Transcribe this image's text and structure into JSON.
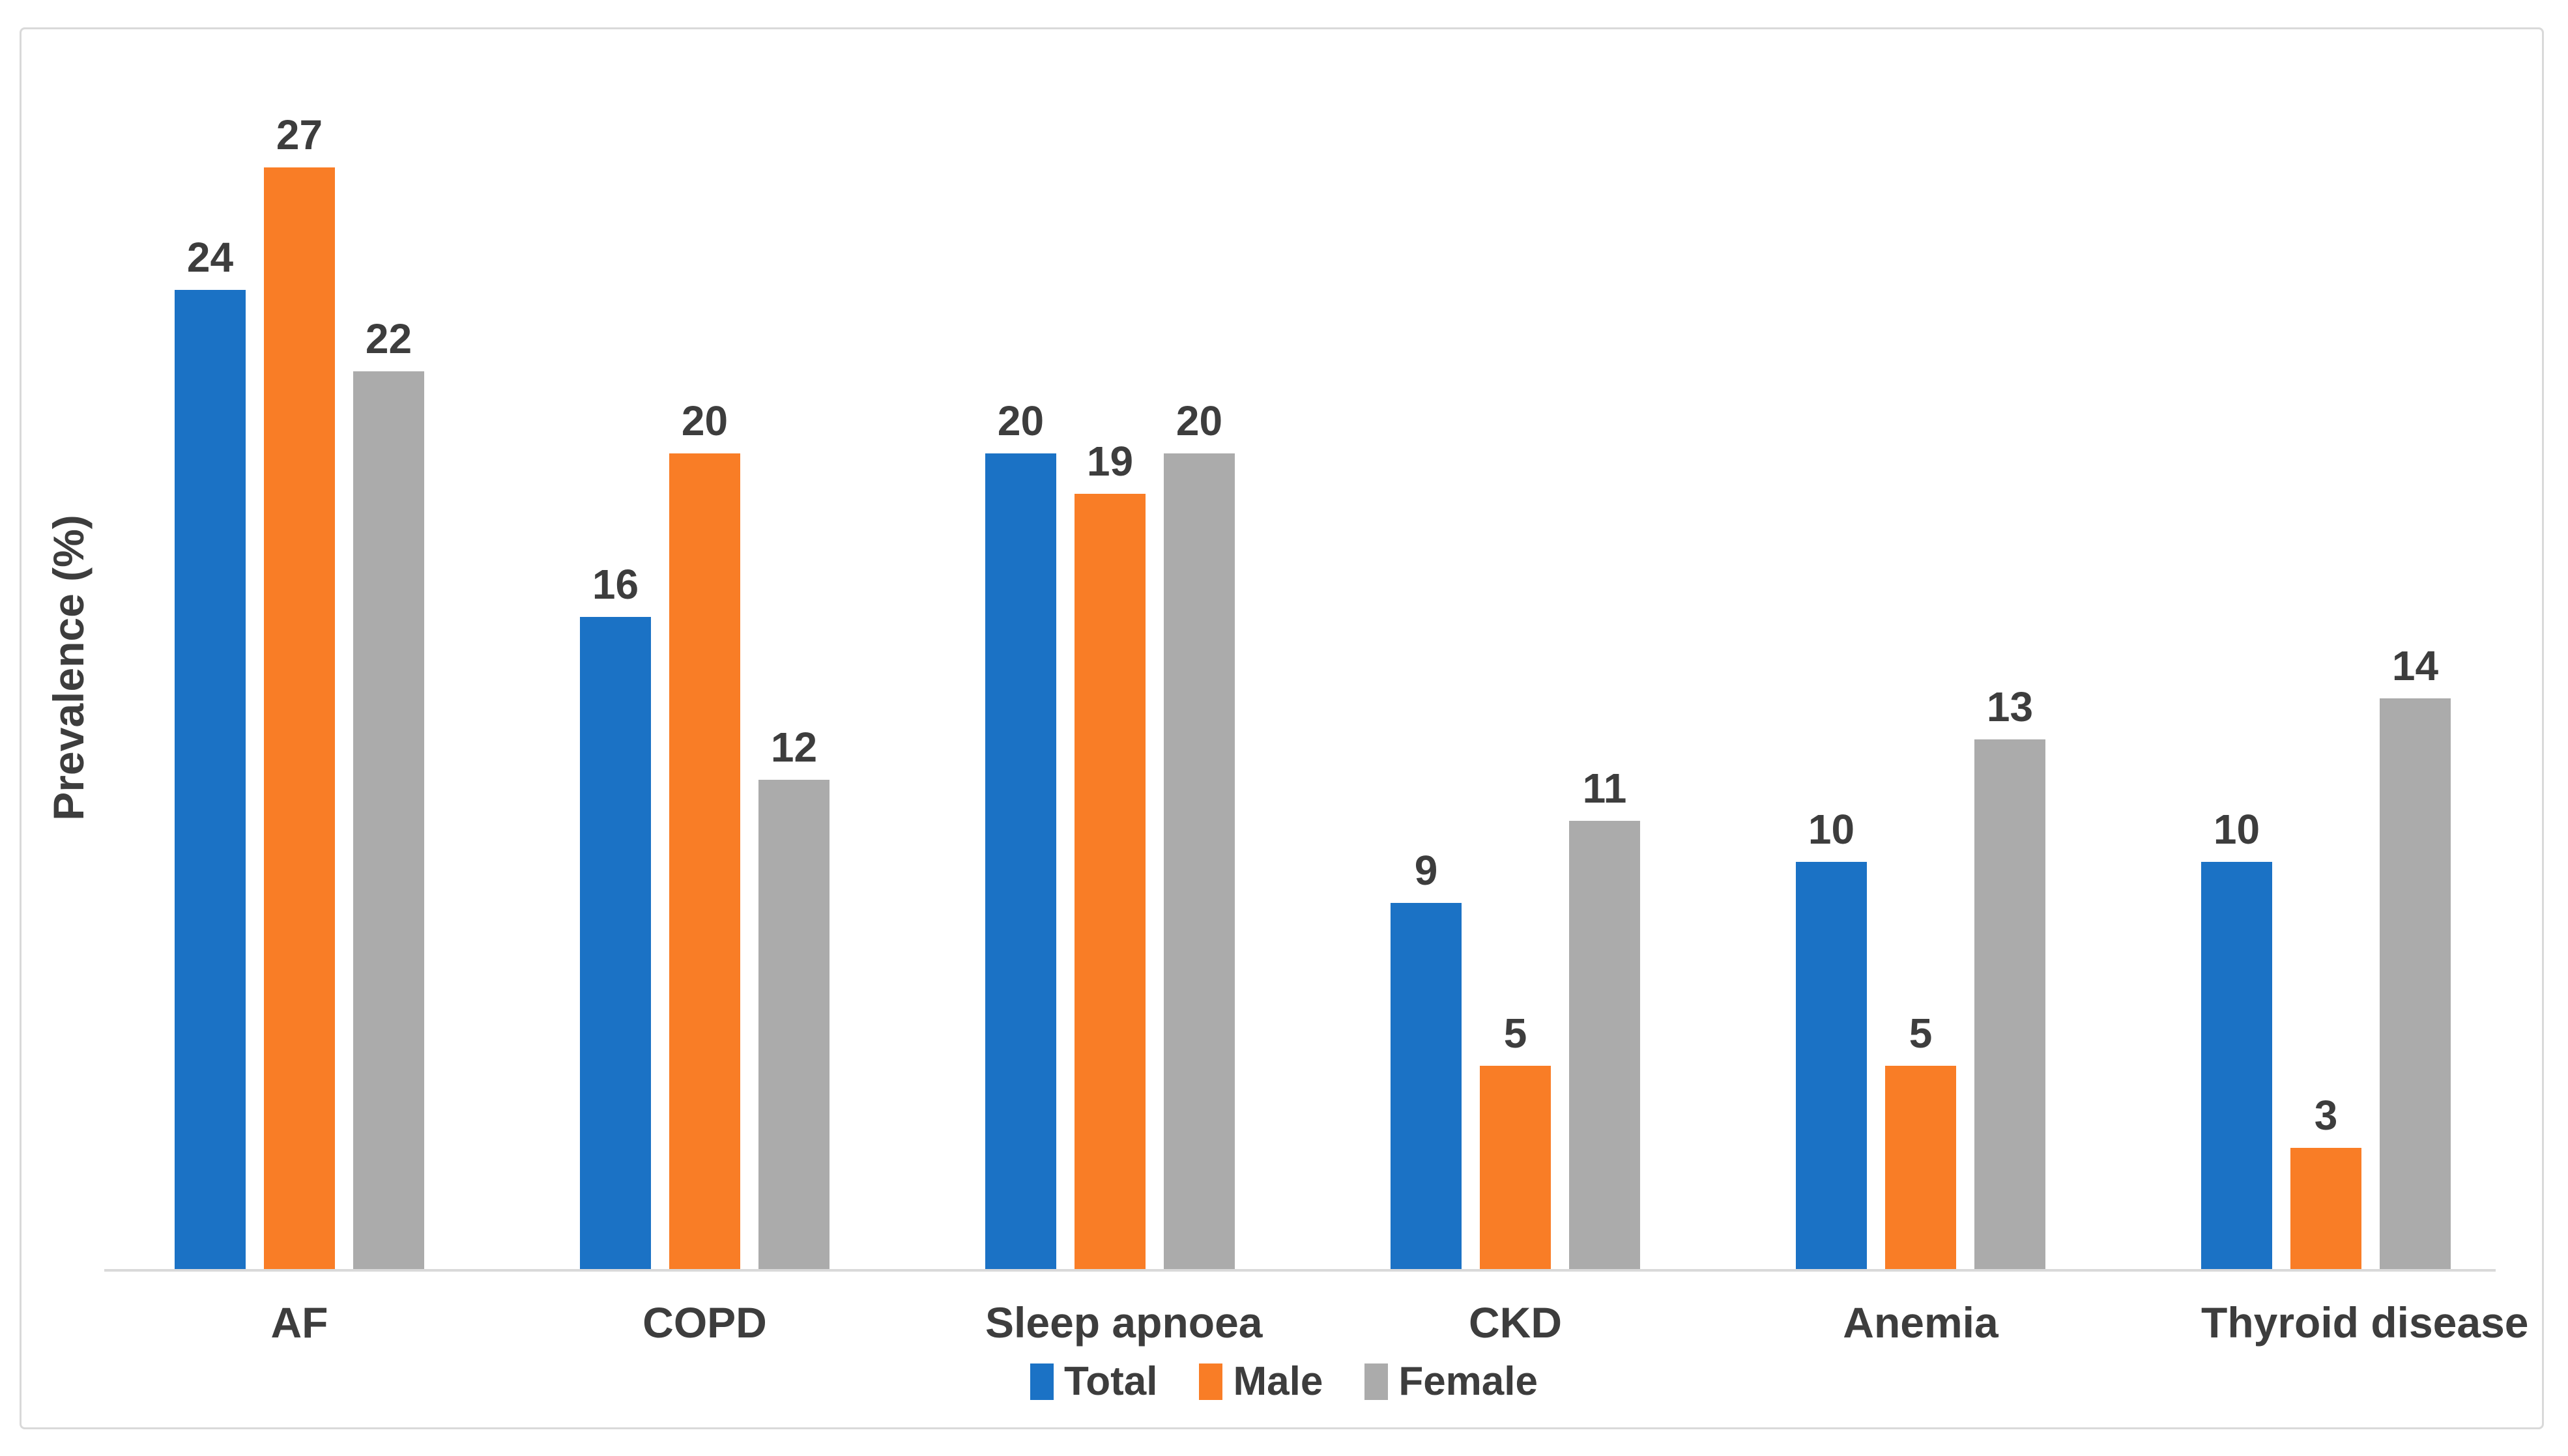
{
  "chart_data": {
    "type": "bar",
    "title": "",
    "xlabel": "",
    "ylabel": "Prevalence (%)",
    "categories": [
      "AF",
      "COPD",
      "Sleep apnoea",
      "CKD",
      "Anemia",
      "Thyroid disease"
    ],
    "series": [
      {
        "name": "Total",
        "color": "#1B72C5",
        "values": [
          24,
          16,
          20,
          9,
          10,
          10
        ]
      },
      {
        "name": "Male",
        "color": "#F97D26",
        "values": [
          27,
          20,
          19,
          5,
          5,
          3
        ]
      },
      {
        "name": "Female",
        "color": "#ABABAB",
        "values": [
          22,
          12,
          20,
          11,
          13,
          14
        ]
      }
    ],
    "ylim": [
      0,
      29.5
    ],
    "grid": false,
    "data_labels": true,
    "legend_position": "bottom"
  },
  "colors": {
    "axis_line": "#D9D9D9",
    "frame_border": "#D9D9D9",
    "text": "#3D3D3D",
    "background": "#FFFFFF"
  }
}
